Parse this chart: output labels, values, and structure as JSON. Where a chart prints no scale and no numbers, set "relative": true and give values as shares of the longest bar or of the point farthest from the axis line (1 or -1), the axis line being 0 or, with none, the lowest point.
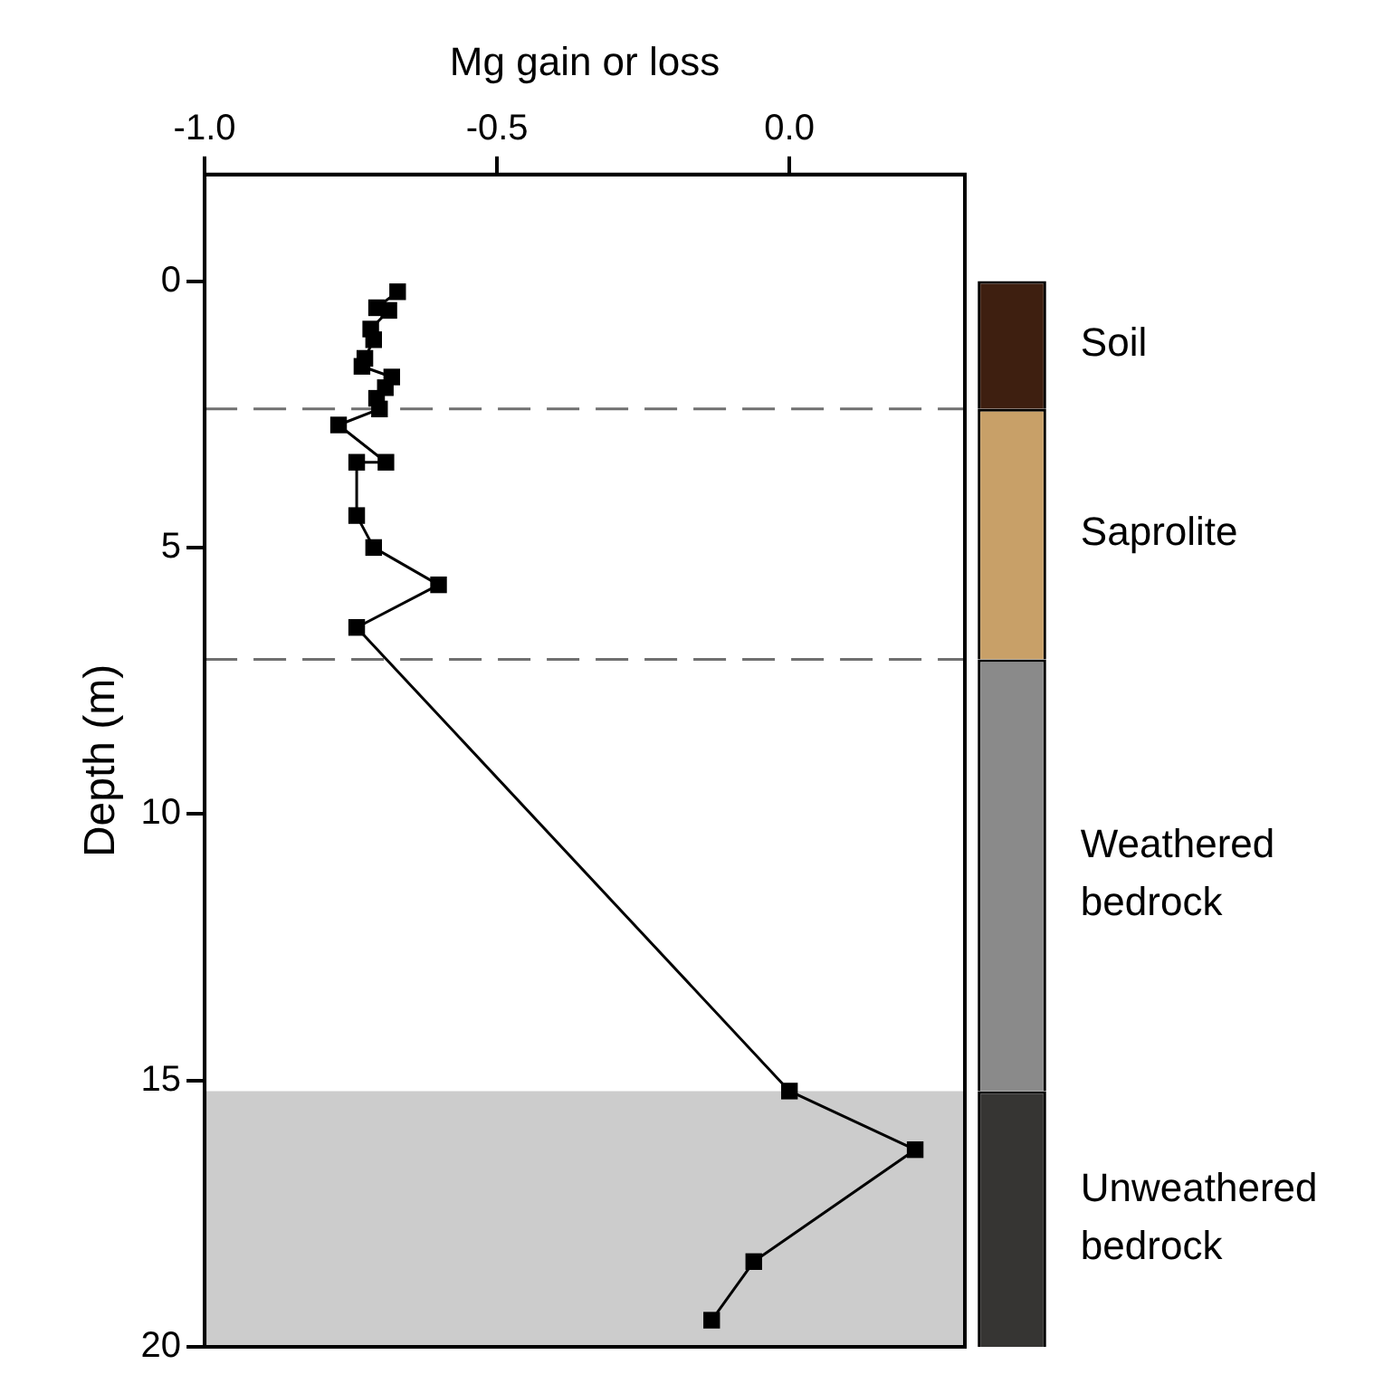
{
  "chart_data": [
    {
      "type": "line",
      "xlabel": "Mg gain or loss",
      "ylabel": "Depth (m)",
      "series": [
        {
          "color": "#000000",
          "x": [
            -0.67,
            -0.706,
            -0.685,
            -0.716,
            -0.711,
            -0.726,
            -0.731,
            -0.68,
            -0.691,
            -0.706,
            -0.701,
            -0.771,
            -0.69,
            -0.74,
            -0.74,
            -0.711,
            -0.6,
            -0.74,
            0.0,
            0.215,
            -0.061,
            -0.133
          ],
          "values": [
            0.2,
            0.5,
            0.55,
            0.9,
            1.1,
            1.45,
            1.6,
            1.8,
            2.0,
            2.2,
            2.4,
            2.7,
            3.4,
            3.4,
            4.4,
            5.0,
            5.7,
            6.5,
            15.2,
            16.3,
            18.4,
            19.5
          ]
        }
      ],
      "xlim": [
        -1.0,
        0.3
      ],
      "xticks": [
        {
          "value": -1.0,
          "label": "-1.0"
        },
        {
          "value": -0.5,
          "label": "-0.5"
        },
        {
          "value": 0.0,
          "label": "0.0"
        }
      ],
      "ylim": [
        20,
        -2
      ],
      "yticks": [
        0,
        5,
        10,
        15,
        20
      ],
      "ref_lines": [
        {
          "axis": "y",
          "value": 2.4,
          "color": "#707070",
          "line_style": "dashed"
        },
        {
          "axis": "y",
          "value": 7.1,
          "color": "#707070",
          "line_style": "dashed"
        }
      ],
      "bands": [
        {
          "axis": "y",
          "from": 15.2,
          "to": 20,
          "color": "#cccccc"
        }
      ],
      "grid": false,
      "legend": false,
      "marker": "square",
      "line_style": "solid"
    },
    {
      "type": "bar",
      "stacked": true,
      "categories": [
        null
      ],
      "series": [
        {
          "name": "Unweathered bedrock",
          "color": "#363533",
          "values": [
            0.24
          ]
        },
        {
          "name": "Weathered bedrock",
          "color": "#8a8a8a",
          "values": [
            0.405
          ]
        },
        {
          "name": "Saprolite",
          "color": "#c8a068",
          "values": [
            0.235
          ]
        },
        {
          "name": "Soil",
          "color": "#3e1f10",
          "values": [
            0.12
          ]
        }
      ],
      "relative": true,
      "legend": false
    }
  ]
}
